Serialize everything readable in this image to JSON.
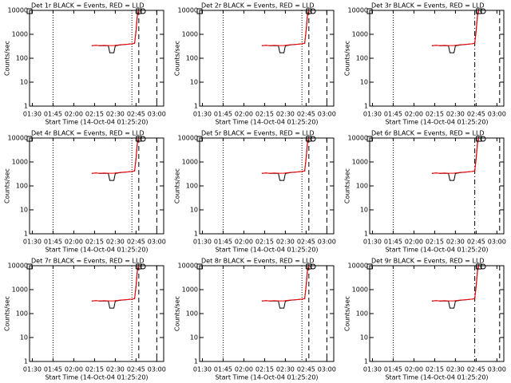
{
  "chart_data": [
    {
      "type": "line",
      "title": "Det 1r BLACK = Events, RED = LLD",
      "x_label": "Start Time (14-Oct-04 01:25:20)",
      "y_label": "Counts/sec",
      "log_y": true,
      "xlim": [
        "01:28",
        "03:05"
      ],
      "ylim": [
        1,
        10000
      ],
      "xticks": [
        "01:30",
        "01:45",
        "02:00",
        "02:15",
        "02:30",
        "02:45",
        "03:00"
      ],
      "yticks": [
        1,
        10,
        100,
        1000,
        10000
      ],
      "x": [
        "02:13",
        "02:16",
        "02:19",
        "02:22",
        "02:25",
        "02:26",
        "02:29",
        "02:30",
        "02:34",
        "02:38",
        "02:42",
        "02:44",
        "02:45",
        "02:46",
        "02:47"
      ],
      "series": [
        {
          "color": "#000000",
          "values": [
            330,
            350,
            330,
            340,
            330,
            170,
            170,
            330,
            360,
            380,
            400,
            420,
            1500,
            7000,
            11000
          ]
        },
        {
          "color": "#ff0000",
          "values": [
            340,
            350,
            340,
            350,
            340,
            340,
            340,
            350,
            370,
            380,
            400,
            420,
            1300,
            6000,
            10000
          ]
        }
      ],
      "vlines": [
        {
          "x": "01:45",
          "style": "dotted"
        },
        {
          "x": "02:42",
          "style": "dotted"
        },
        {
          "x": "02:47",
          "style": "dashed"
        },
        {
          "x": "03:00",
          "style": "dashed"
        }
      ],
      "symbols": [
        {
          "x": "01:28",
          "shape": "square"
        },
        {
          "x": "02:47",
          "shape": "square"
        },
        {
          "x": "02:50",
          "shape": "circle"
        }
      ]
    },
    {
      "type": "line",
      "title": "Det 2r BLACK = Events, RED = LLD",
      "x_label": "Start Time (14-Oct-04 01:25:20)",
      "y_label": "Counts/sec",
      "log_y": true,
      "xlim": [
        "01:28",
        "03:05"
      ],
      "ylim": [
        1,
        10000
      ],
      "xticks": [
        "01:30",
        "01:45",
        "02:00",
        "02:15",
        "02:30",
        "02:45",
        "03:00"
      ],
      "yticks": [
        1,
        10,
        100,
        1000,
        10000
      ],
      "x": [
        "02:13",
        "02:16",
        "02:19",
        "02:22",
        "02:25",
        "02:26",
        "02:29",
        "02:30",
        "02:34",
        "02:38",
        "02:42",
        "02:44",
        "02:45",
        "02:46",
        "02:47"
      ],
      "series": [
        {
          "color": "#000000",
          "values": [
            330,
            350,
            330,
            340,
            330,
            170,
            170,
            330,
            360,
            380,
            400,
            420,
            1500,
            7000,
            11000
          ]
        },
        {
          "color": "#ff0000",
          "values": [
            340,
            350,
            340,
            350,
            340,
            340,
            340,
            350,
            370,
            380,
            400,
            420,
            1300,
            6000,
            10000
          ]
        }
      ],
      "vlines": [
        {
          "x": "01:45",
          "style": "dotted"
        },
        {
          "x": "02:42",
          "style": "dotted"
        },
        {
          "x": "02:47",
          "style": "dashed"
        },
        {
          "x": "03:00",
          "style": "dashed"
        }
      ],
      "symbols": [
        {
          "x": "01:28",
          "shape": "square"
        },
        {
          "x": "02:47",
          "shape": "square"
        },
        {
          "x": "02:50",
          "shape": "circle"
        }
      ]
    },
    {
      "type": "line",
      "title": "Det 3r BLACK = Events, RED = LLD",
      "x_label": "Start Time (14-Oct-04 01:25:20)",
      "y_label": "Counts/sec",
      "log_y": true,
      "xlim": [
        "01:28",
        "03:05"
      ],
      "ylim": [
        1,
        10000
      ],
      "xticks": [
        "01:30",
        "01:45",
        "02:00",
        "02:15",
        "02:30",
        "02:45",
        "03:00"
      ],
      "yticks": [
        1,
        10,
        100,
        1000,
        10000
      ],
      "x": [
        "02:13",
        "02:16",
        "02:19",
        "02:22",
        "02:25",
        "02:26",
        "02:29",
        "02:30",
        "02:34",
        "02:38",
        "02:42",
        "02:44",
        "02:45",
        "02:46",
        "02:47"
      ],
      "series": [
        {
          "color": "#000000",
          "values": [
            330,
            350,
            330,
            340,
            330,
            170,
            170,
            330,
            360,
            380,
            400,
            420,
            1500,
            7000,
            11000
          ]
        },
        {
          "color": "#ff0000",
          "values": [
            340,
            350,
            340,
            350,
            340,
            340,
            340,
            350,
            370,
            380,
            400,
            420,
            1300,
            6000,
            10000
          ]
        }
      ],
      "vlines": [
        {
          "x": "01:45",
          "style": "dotted"
        },
        {
          "x": "02:44",
          "style": "dashdot"
        },
        {
          "x": "03:02",
          "style": "dashed"
        }
      ],
      "symbols": [
        {
          "x": "01:28",
          "shape": "square"
        },
        {
          "x": "02:47",
          "shape": "square"
        },
        {
          "x": "02:50",
          "shape": "circle"
        }
      ]
    },
    {
      "type": "line",
      "title": "Det 4r BLACK = Events, RED = LLD",
      "x_label": "Start Time (14-Oct-04 01:25:20)",
      "y_label": "Counts/sec",
      "log_y": true,
      "xlim": [
        "01:28",
        "03:05"
      ],
      "ylim": [
        1,
        10000
      ],
      "xticks": [
        "01:30",
        "01:45",
        "02:00",
        "02:15",
        "02:30",
        "02:45",
        "03:00"
      ],
      "yticks": [
        1,
        10,
        100,
        1000,
        10000
      ],
      "x": [
        "02:13",
        "02:16",
        "02:19",
        "02:22",
        "02:25",
        "02:26",
        "02:29",
        "02:30",
        "02:34",
        "02:38",
        "02:42",
        "02:44",
        "02:45",
        "02:46",
        "02:47"
      ],
      "series": [
        {
          "color": "#000000",
          "values": [
            330,
            350,
            330,
            340,
            330,
            170,
            170,
            330,
            360,
            380,
            400,
            420,
            1500,
            7000,
            11000
          ]
        },
        {
          "color": "#ff0000",
          "values": [
            340,
            350,
            340,
            350,
            340,
            340,
            340,
            350,
            370,
            380,
            400,
            420,
            1300,
            6000,
            10000
          ]
        }
      ],
      "vlines": [
        {
          "x": "01:45",
          "style": "dotted"
        },
        {
          "x": "02:42",
          "style": "dotted"
        },
        {
          "x": "02:47",
          "style": "dashed"
        },
        {
          "x": "03:00",
          "style": "dashed"
        }
      ],
      "symbols": [
        {
          "x": "01:28",
          "shape": "square"
        },
        {
          "x": "02:47",
          "shape": "square"
        },
        {
          "x": "02:50",
          "shape": "circle"
        }
      ]
    },
    {
      "type": "line",
      "title": "Det 5r BLACK = Events, RED = LLD",
      "x_label": "Start Time (14-Oct-04 01:25:20)",
      "y_label": "Counts/sec",
      "log_y": true,
      "xlim": [
        "01:28",
        "03:05"
      ],
      "ylim": [
        1,
        10000
      ],
      "xticks": [
        "01:30",
        "01:45",
        "02:00",
        "02:15",
        "02:30",
        "02:45",
        "03:00"
      ],
      "yticks": [
        1,
        10,
        100,
        1000,
        10000
      ],
      "x": [
        "02:13",
        "02:16",
        "02:19",
        "02:22",
        "02:25",
        "02:26",
        "02:29",
        "02:30",
        "02:34",
        "02:38",
        "02:42",
        "02:44",
        "02:45",
        "02:46",
        "02:47"
      ],
      "series": [
        {
          "color": "#000000",
          "values": [
            330,
            350,
            330,
            340,
            330,
            170,
            170,
            330,
            360,
            380,
            400,
            420,
            1500,
            7000,
            11000
          ]
        },
        {
          "color": "#ff0000",
          "values": [
            340,
            350,
            340,
            350,
            340,
            340,
            340,
            350,
            370,
            380,
            400,
            420,
            1300,
            6000,
            10000
          ]
        }
      ],
      "vlines": [
        {
          "x": "01:45",
          "style": "dotted"
        },
        {
          "x": "02:42",
          "style": "dotted"
        },
        {
          "x": "02:47",
          "style": "dashed"
        },
        {
          "x": "03:00",
          "style": "dashed"
        }
      ],
      "symbols": [
        {
          "x": "01:28",
          "shape": "square"
        },
        {
          "x": "02:47",
          "shape": "square"
        },
        {
          "x": "02:50",
          "shape": "circle"
        }
      ]
    },
    {
      "type": "line",
      "title": "Det 6r BLACK = Events, RED = LLD",
      "x_label": "Start Time (14-Oct-04 01:25:20)",
      "y_label": "Counts/sec",
      "log_y": true,
      "xlim": [
        "01:28",
        "03:05"
      ],
      "ylim": [
        1,
        10000
      ],
      "xticks": [
        "01:30",
        "01:45",
        "02:00",
        "02:15",
        "02:30",
        "02:45",
        "03:00"
      ],
      "yticks": [
        1,
        10,
        100,
        1000,
        10000
      ],
      "x": [
        "02:13",
        "02:16",
        "02:19",
        "02:22",
        "02:25",
        "02:26",
        "02:29",
        "02:30",
        "02:34",
        "02:38",
        "02:42",
        "02:44",
        "02:45",
        "02:46",
        "02:47"
      ],
      "series": [
        {
          "color": "#000000",
          "values": [
            330,
            350,
            330,
            340,
            330,
            170,
            170,
            330,
            360,
            380,
            400,
            420,
            1500,
            7000,
            11000
          ]
        },
        {
          "color": "#ff0000",
          "values": [
            340,
            350,
            340,
            350,
            340,
            340,
            340,
            350,
            370,
            380,
            400,
            420,
            1300,
            6000,
            10000
          ]
        }
      ],
      "vlines": [
        {
          "x": "01:45",
          "style": "dotted"
        },
        {
          "x": "02:44",
          "style": "dashdot"
        },
        {
          "x": "03:02",
          "style": "dashed"
        }
      ],
      "symbols": [
        {
          "x": "01:28",
          "shape": "square"
        },
        {
          "x": "02:47",
          "shape": "square"
        },
        {
          "x": "02:50",
          "shape": "circle"
        }
      ]
    },
    {
      "type": "line",
      "title": "Det 7r BLACK = Events, RED = LLD",
      "x_label": "Start Time (14-Oct-04 01:25:20)",
      "y_label": "Counts/sec",
      "log_y": true,
      "xlim": [
        "01:28",
        "03:05"
      ],
      "ylim": [
        1,
        10000
      ],
      "xticks": [
        "01:30",
        "01:45",
        "02:00",
        "02:15",
        "02:30",
        "02:45",
        "03:00"
      ],
      "yticks": [
        1,
        10,
        100,
        1000,
        10000
      ],
      "x": [
        "02:13",
        "02:16",
        "02:19",
        "02:22",
        "02:25",
        "02:26",
        "02:29",
        "02:30",
        "02:34",
        "02:38",
        "02:42",
        "02:44",
        "02:45",
        "02:46",
        "02:47"
      ],
      "series": [
        {
          "color": "#000000",
          "values": [
            330,
            350,
            330,
            340,
            330,
            170,
            170,
            330,
            360,
            380,
            400,
            420,
            1500,
            7000,
            11000
          ]
        },
        {
          "color": "#ff0000",
          "values": [
            340,
            350,
            340,
            350,
            340,
            340,
            340,
            350,
            370,
            380,
            400,
            420,
            1300,
            6000,
            10000
          ]
        }
      ],
      "vlines": [
        {
          "x": "01:45",
          "style": "dotted"
        },
        {
          "x": "02:42",
          "style": "dotted"
        },
        {
          "x": "02:47",
          "style": "dashed"
        },
        {
          "x": "03:00",
          "style": "dashed"
        }
      ],
      "symbols": [
        {
          "x": "01:28",
          "shape": "square"
        },
        {
          "x": "02:47",
          "shape": "square"
        },
        {
          "x": "02:50",
          "shape": "circle"
        }
      ]
    },
    {
      "type": "line",
      "title": "Det 8r BLACK = Events, RED = LLD",
      "x_label": "Start Time (14-Oct-04 01:25:20)",
      "y_label": "Counts/sec",
      "log_y": true,
      "xlim": [
        "01:28",
        "03:05"
      ],
      "ylim": [
        1,
        10000
      ],
      "xticks": [
        "01:30",
        "01:45",
        "02:00",
        "02:15",
        "02:30",
        "02:45",
        "03:00"
      ],
      "yticks": [
        1,
        10,
        100,
        1000,
        10000
      ],
      "x": [
        "02:13",
        "02:16",
        "02:19",
        "02:22",
        "02:25",
        "02:26",
        "02:29",
        "02:30",
        "02:34",
        "02:38",
        "02:42",
        "02:44",
        "02:45",
        "02:46",
        "02:47"
      ],
      "series": [
        {
          "color": "#000000",
          "values": [
            330,
            350,
            330,
            340,
            330,
            170,
            170,
            330,
            360,
            380,
            400,
            420,
            1500,
            7000,
            11000
          ]
        },
        {
          "color": "#ff0000",
          "values": [
            340,
            350,
            340,
            350,
            340,
            340,
            340,
            350,
            370,
            380,
            400,
            420,
            1300,
            6000,
            10000
          ]
        }
      ],
      "vlines": [
        {
          "x": "01:45",
          "style": "dotted"
        },
        {
          "x": "02:42",
          "style": "dotted"
        },
        {
          "x": "02:47",
          "style": "dashed"
        },
        {
          "x": "03:00",
          "style": "dashed"
        }
      ],
      "symbols": [
        {
          "x": "01:28",
          "shape": "square"
        },
        {
          "x": "02:47",
          "shape": "square"
        },
        {
          "x": "02:50",
          "shape": "circle"
        }
      ]
    },
    {
      "type": "line",
      "title": "Det 9r BLACK = Events, RED = LLD",
      "x_label": "Start Time (14-Oct-04 01:25:20)",
      "y_label": "Counts/sec",
      "log_y": true,
      "xlim": [
        "01:28",
        "03:05"
      ],
      "ylim": [
        1,
        10000
      ],
      "xticks": [
        "01:30",
        "01:45",
        "02:00",
        "02:15",
        "02:30",
        "02:45",
        "03:00"
      ],
      "yticks": [
        1,
        10,
        100,
        1000,
        10000
      ],
      "x": [
        "02:13",
        "02:16",
        "02:19",
        "02:22",
        "02:25",
        "02:26",
        "02:29",
        "02:30",
        "02:34",
        "02:38",
        "02:42",
        "02:44",
        "02:45",
        "02:46",
        "02:47"
      ],
      "series": [
        {
          "color": "#000000",
          "values": [
            330,
            350,
            330,
            340,
            330,
            170,
            170,
            330,
            360,
            380,
            400,
            420,
            1500,
            7000,
            11000
          ]
        },
        {
          "color": "#ff0000",
          "values": [
            340,
            350,
            340,
            350,
            340,
            340,
            340,
            350,
            370,
            380,
            400,
            420,
            1300,
            6000,
            10000
          ]
        }
      ],
      "vlines": [
        {
          "x": "01:45",
          "style": "dotted"
        },
        {
          "x": "02:44",
          "style": "dashdot"
        },
        {
          "x": "03:02",
          "style": "dashed"
        }
      ],
      "symbols": [
        {
          "x": "01:28",
          "shape": "square"
        },
        {
          "x": "02:47",
          "shape": "square"
        },
        {
          "x": "02:50",
          "shape": "circle"
        }
      ]
    }
  ]
}
